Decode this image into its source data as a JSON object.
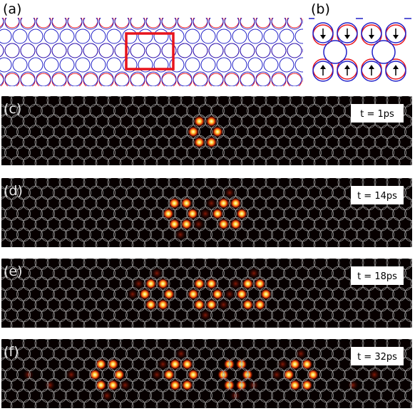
{
  "panels": [
    {
      "label": "(a)"
    },
    {
      "label": "(b)"
    },
    {
      "label": "(c)",
      "time": "t = 1ps"
    },
    {
      "label": "(d)",
      "time": "t = 14ps"
    },
    {
      "label": "(e)",
      "time": "t = 18ps"
    },
    {
      "label": "(f)",
      "time": "t = 32ps"
    }
  ]
}
